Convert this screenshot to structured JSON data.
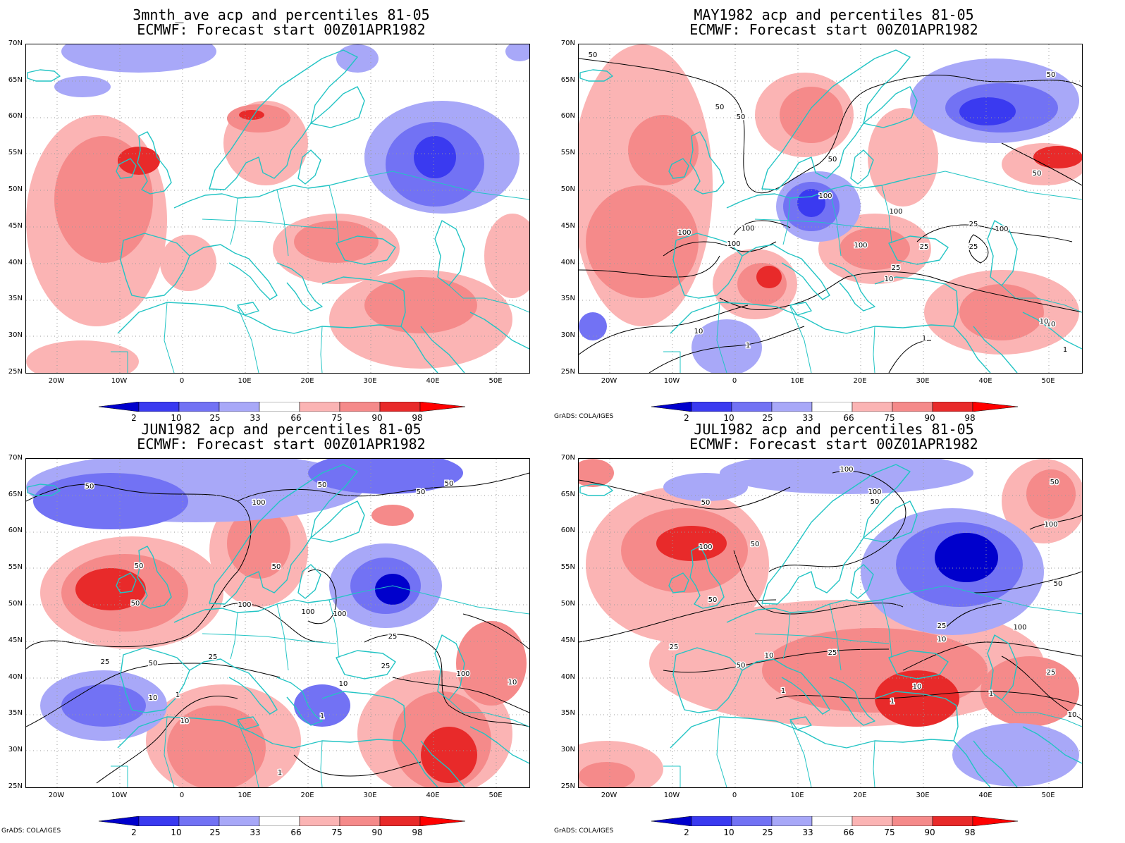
{
  "panels": [
    {
      "title_line1": "3mnth_ave acp and percentiles 81-05",
      "title_line2": "ECMWF: Forecast start 00Z01APR1982",
      "credit": ""
    },
    {
      "title_line1": "MAY1982 acp and percentiles 81-05",
      "title_line2": "ECMWF: Forecast start 00Z01APR1982",
      "credit": "GrADS: COLA/IGES"
    },
    {
      "title_line1": "JUN1982 acp and percentiles 81-05",
      "title_line2": "ECMWF: Forecast start 00Z01APR1982",
      "credit": "GrADS: COLA/IGES"
    },
    {
      "title_line1": "JUL1982 acp and percentiles 81-05",
      "title_line2": "ECMWF: Forecast start 00Z01APR1982",
      "credit": "GrADS: COLA/IGES"
    }
  ],
  "lat_labels": [
    "70N",
    "65N",
    "60N",
    "55N",
    "50N",
    "45N",
    "40N",
    "35N",
    "30N",
    "25N"
  ],
  "lon_labels": [
    "20W",
    "10W",
    "0",
    "10E",
    "20E",
    "30E",
    "40E",
    "50E"
  ],
  "colorbar": {
    "labels": [
      "2",
      "10",
      "25",
      "33",
      "66",
      "75",
      "90",
      "98"
    ],
    "colors": [
      "#0000cc",
      "#3a3af0",
      "#7272f4",
      "#a8a8f8",
      "#ffffff",
      "#fbb4b4",
      "#f58a8a",
      "#f05a5a",
      "#e82a2a",
      "#ff0000"
    ]
  },
  "contour_labels": {
    "may": [
      "50",
      "50",
      "50",
      "50",
      "50",
      "50",
      "100",
      "100",
      "100",
      "100",
      "100",
      "100",
      "100",
      "25",
      "25",
      "25",
      "25",
      "10",
      "10",
      "10",
      "10",
      "1",
      "1",
      "1"
    ],
    "jun": [
      "50",
      "50",
      "50",
      "50",
      "50",
      "50",
      "50",
      "50",
      "100",
      "100",
      "100",
      "100",
      "100",
      "25",
      "25",
      "25",
      "25",
      "10",
      "10",
      "10",
      "10",
      "1",
      "1",
      "1"
    ],
    "jul": [
      "100",
      "100",
      "100",
      "100",
      "100",
      "50",
      "50",
      "50",
      "50",
      "50",
      "50",
      "50",
      "25",
      "25",
      "25",
      "25",
      "10",
      "10",
      "10",
      "10",
      "1",
      "1",
      "1"
    ]
  }
}
